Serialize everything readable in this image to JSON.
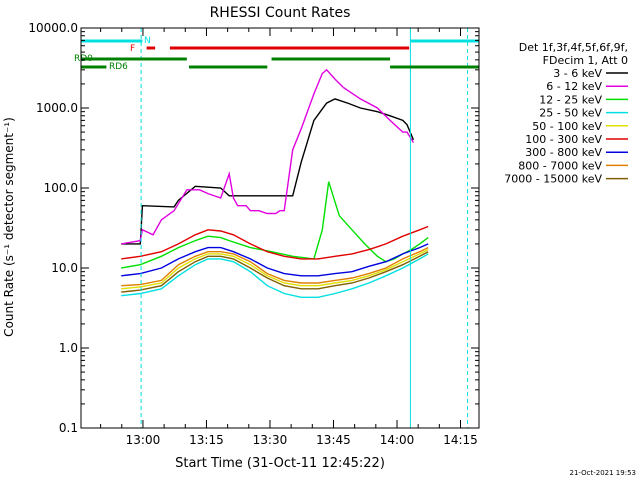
{
  "chart_data": {
    "type": "line",
    "title": "RHESSI Count Rates",
    "xlabel": "Start Time (31-Oct-11 12:45:22)",
    "ylabel": "Count Rate (s⁻¹ detector segment⁻¹)",
    "y_scale": "log",
    "ylim": [
      0.1,
      10000
    ],
    "x_unit": "minutes after 12:45:22",
    "xlim": [
      0,
      94
    ],
    "x_ticks": [
      {
        "x": 14.63,
        "label": "13:00"
      },
      {
        "x": 29.63,
        "label": "13:15"
      },
      {
        "x": 44.63,
        "label": "13:30"
      },
      {
        "x": 59.63,
        "label": "13:45"
      },
      {
        "x": 74.63,
        "label": "14:00"
      },
      {
        "x": 89.63,
        "label": "14:15"
      }
    ],
    "y_ticks": [
      {
        "v": 0.1,
        "label": "0.1"
      },
      {
        "v": 1,
        "label": "1.0"
      },
      {
        "v": 10,
        "label": "10.0"
      },
      {
        "v": 100,
        "label": "100.0"
      },
      {
        "v": 1000,
        "label": "1000.0"
      },
      {
        "v": 10000,
        "label": "10000.0"
      }
    ],
    "grid": false,
    "legend_position": "right",
    "legend_header": [
      "Det 1f,3f,4f,5f,6f,9f,",
      "FDecim 1, Att 0"
    ],
    "series": [
      {
        "name": "3 - 6 keV",
        "color": "#000000",
        "x": [
          9.5,
          14,
          14.5,
          22,
          23,
          27,
          33,
          35,
          47,
          50,
          52,
          55,
          58,
          60,
          63,
          66,
          70,
          73,
          76,
          77,
          78.5
        ],
        "y": [
          20,
          20,
          60,
          58,
          70,
          105,
          100,
          80,
          80,
          80,
          210,
          700,
          1150,
          1300,
          1150,
          1000,
          900,
          800,
          700,
          620,
          400
        ]
      },
      {
        "name": "6 - 12 keV",
        "color": "#e000e0",
        "x": [
          9.5,
          14,
          14.5,
          17,
          19,
          22,
          25,
          28,
          30,
          33,
          35,
          36,
          37,
          39,
          40,
          42,
          44,
          46,
          47,
          48,
          50,
          52,
          55,
          57,
          58,
          60,
          62,
          66,
          70,
          73,
          76,
          77,
          78.5
        ],
        "y": [
          20,
          22,
          30,
          26,
          40,
          52,
          95,
          95,
          85,
          75,
          150,
          75,
          60,
          60,
          52,
          52,
          48,
          48,
          52,
          52,
          300,
          550,
          1500,
          2700,
          3000,
          2300,
          1800,
          1300,
          1000,
          700,
          500,
          500,
          370
        ]
      },
      {
        "name": "12 - 25 keV",
        "color": "#00e000",
        "x": [
          9.5,
          14,
          19,
          23,
          27,
          30,
          33,
          35,
          40,
          45,
          50,
          55,
          57,
          58.5,
          61,
          64,
          67,
          70,
          72,
          74,
          76,
          78,
          80,
          82
        ],
        "y": [
          10,
          11,
          14,
          18,
          22,
          25,
          24,
          22,
          18,
          16,
          14,
          13,
          30,
          120,
          45,
          30,
          20,
          14,
          12,
          13,
          15,
          17,
          20,
          24
        ]
      },
      {
        "name": "25 - 50 keV",
        "color": "#00e0e0",
        "x": [
          9.5,
          14,
          19,
          23,
          27,
          30,
          33,
          36,
          40,
          44,
          48,
          52,
          56,
          60,
          64,
          68,
          72,
          76,
          80,
          82
        ],
        "y": [
          4.5,
          4.8,
          5.5,
          8,
          11,
          13,
          13,
          12,
          9,
          6,
          4.8,
          4.3,
          4.3,
          4.8,
          5.5,
          6.5,
          8,
          10,
          13,
          15
        ]
      },
      {
        "name": "50 - 100 keV",
        "color": "#e0e000",
        "x": [
          9.5,
          14,
          19,
          23,
          27,
          30,
          33,
          36,
          40,
          44,
          48,
          52,
          56,
          60,
          64,
          68,
          72,
          76,
          80,
          82
        ],
        "y": [
          5.5,
          5.8,
          6.5,
          10,
          13,
          15,
          15,
          14,
          11,
          8,
          6.5,
          6,
          6,
          6.5,
          7,
          8,
          9.5,
          12,
          15,
          17
        ]
      },
      {
        "name": "100 - 300 keV",
        "color": "#e00000",
        "x": [
          9.5,
          14,
          19,
          23,
          27,
          30,
          33,
          36,
          40,
          44,
          48,
          52,
          56,
          60,
          64,
          68,
          72,
          76,
          80,
          82
        ],
        "y": [
          13,
          14,
          16,
          20,
          26,
          30,
          29,
          26,
          20,
          16,
          14,
          13,
          13,
          14,
          15,
          17,
          20,
          25,
          30,
          33
        ]
      },
      {
        "name": "300 - 800 keV",
        "color": "#0000e0",
        "x": [
          9.5,
          14,
          19,
          23,
          27,
          30,
          33,
          36,
          40,
          44,
          48,
          52,
          56,
          60,
          64,
          68,
          72,
          76,
          80,
          82
        ],
        "y": [
          8,
          8.5,
          10,
          13,
          16,
          18,
          18,
          16,
          13,
          10,
          8.5,
          8,
          8,
          8.5,
          9,
          10.5,
          12,
          15,
          18,
          20
        ]
      },
      {
        "name": "800 - 7000 keV",
        "color": "#e08000",
        "x": [
          9.5,
          14,
          19,
          23,
          27,
          30,
          33,
          36,
          40,
          44,
          48,
          52,
          56,
          60,
          64,
          68,
          72,
          76,
          80,
          82
        ],
        "y": [
          6,
          6.2,
          7,
          11,
          14,
          16,
          16,
          15,
          12,
          8.5,
          7,
          6.5,
          6.5,
          7,
          7.5,
          8.5,
          10,
          13,
          16,
          18
        ]
      },
      {
        "name": "7000 - 15000 keV",
        "color": "#806000",
        "x": [
          9.5,
          14,
          19,
          23,
          27,
          30,
          33,
          36,
          40,
          44,
          48,
          52,
          56,
          60,
          64,
          68,
          72,
          76,
          80,
          82
        ],
        "y": [
          5,
          5.3,
          6,
          9,
          12,
          14,
          14,
          13,
          10,
          7.5,
          6,
          5.5,
          5.5,
          6,
          6.5,
          7.5,
          9,
          11,
          14,
          16
        ]
      }
    ],
    "vertical_lines": [
      {
        "x": 14.2,
        "style": "dashed",
        "color": "#00e0e0"
      },
      {
        "x": 77.8,
        "style": "solid",
        "color": "#00e0e0"
      },
      {
        "x": 91.3,
        "style": "dashed",
        "color": "#00e0e0"
      }
    ],
    "flags": [
      {
        "label": "N",
        "color": "#00e0e0",
        "segments": [
          [
            0,
            14.5
          ],
          [
            77.8,
            94
          ]
        ]
      },
      {
        "label": "F",
        "color": "#e00000",
        "segments": [
          [
            15.5,
            17.5
          ],
          [
            21,
            77.5
          ]
        ]
      },
      {
        "label": "RD0",
        "color": "#008000",
        "segments": [
          [
            0,
            25
          ],
          [
            45,
            73
          ]
        ]
      },
      {
        "label": "RD6",
        "color": "#008000",
        "segments": [
          [
            0,
            6
          ],
          [
            25.5,
            44
          ],
          [
            73,
            94
          ]
        ]
      }
    ]
  },
  "footer": {
    "date": "21-Oct-2021 19:53"
  }
}
